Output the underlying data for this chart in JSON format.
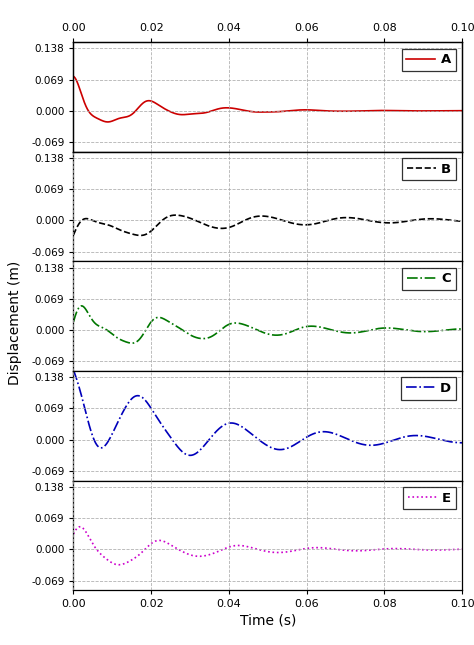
{
  "xlabel": "Time (s)",
  "ylabel": "Displacement (m)",
  "xlim": [
    0.0,
    0.1
  ],
  "ylim": [
    -0.09,
    0.152
  ],
  "yticks": [
    -0.069,
    0.0,
    0.069,
    0.138
  ],
  "ytick_labels": [
    "-0.069",
    "0.000",
    "0.069",
    "0.138"
  ],
  "xticks": [
    0.0,
    0.02,
    0.04,
    0.06,
    0.08,
    0.1
  ],
  "xtick_labels": [
    "0.00",
    "0.02",
    "0.04",
    "0.06",
    "0.08",
    "0.10"
  ],
  "panels": [
    {
      "label": "A",
      "color": "#cc0000",
      "linestyle": "solid",
      "linewidth": 1.2
    },
    {
      "label": "B",
      "color": "#000000",
      "linestyle": "dashed",
      "linewidth": 1.2
    },
    {
      "label": "C",
      "color": "#007700",
      "linestyle": "dashdot",
      "linewidth": 1.2
    },
    {
      "label": "D",
      "color": "#0000bb",
      "linestyle": "dashdot",
      "linewidth": 1.2
    },
    {
      "label": "E",
      "color": "#cc00cc",
      "linestyle": "dotted",
      "linewidth": 1.2
    }
  ],
  "grid_color": "#aaaaaa",
  "grid_alpha": 0.9,
  "bg_color": "#ffffff"
}
